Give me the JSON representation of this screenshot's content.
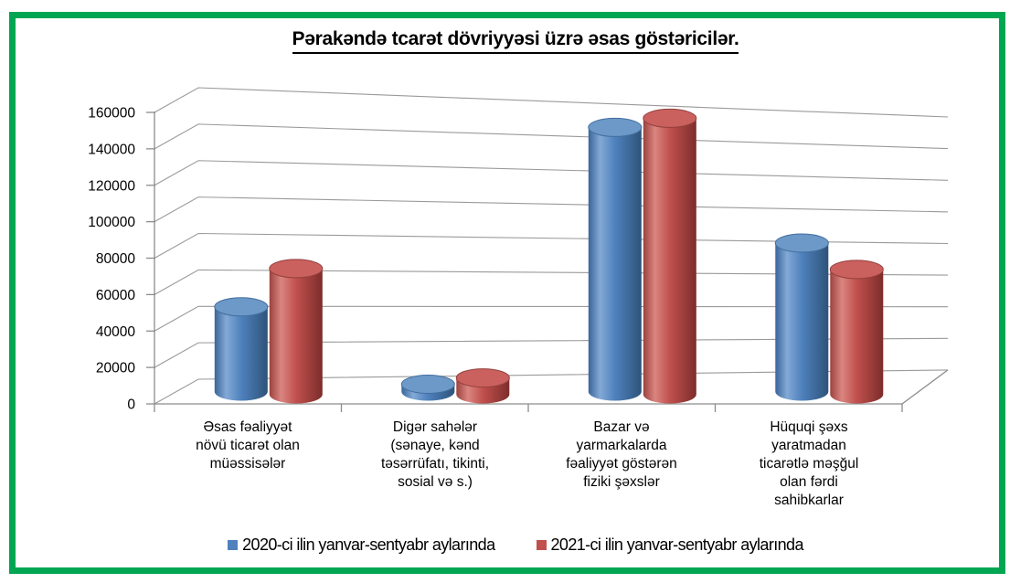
{
  "frame": {
    "border_color": "#00A651"
  },
  "chart_data": {
    "type": "bar",
    "subtype": "3d-cylinder",
    "title": "Pərakəndə tcarət dövriyyəsi üzrə əsas göstəricilər.",
    "categories": [
      "Əsas fəaliyyət növü ticarət olan müəssisələr",
      "Digər sahələr (sənaye, kənd təsərrüfatı, tikinti, sosial və s.)",
      "Bazar və yarmarkalarda fəaliyyət göstərən fiziki şəxslər",
      "Hüquqi şəxs yaratmadan ticarətlə məşğul olan fərdi sahibkarlar"
    ],
    "categories_multiline": [
      "Əsas fəaliyyət\nnövü ticarət olan\nmüəssisələr",
      "Digər sahələr\n(sənaye, kənd\ntəsərrüfatı, tikinti,\nsosial və s.)",
      "Bazar və\nyarmarkalarda\nfəaliyyət göstərən\nfiziki şəxslər",
      "Hüquqi şəxs\nyaratmadan\nticarətlə məşğul\nolan fərdi\nsahibkarlar"
    ],
    "series": [
      {
        "name": "2020-ci ilin yanvar-sentyabr aylarında",
        "color": "#4F81BD",
        "values": [
          46500,
          4000,
          145000,
          81500
        ]
      },
      {
        "name": "2021-ci ilin yanvar-sentyabr aylarında",
        "color": "#C0504D",
        "values": [
          69000,
          9000,
          151500,
          68500
        ]
      }
    ],
    "ylim": [
      0,
      160000
    ],
    "ytick_step": 20000,
    "ytick_labels": [
      "0",
      "20000",
      "40000",
      "60000",
      "80000",
      "100000",
      "120000",
      "140000",
      "160000"
    ],
    "grid": true,
    "legend_position": "bottom"
  }
}
